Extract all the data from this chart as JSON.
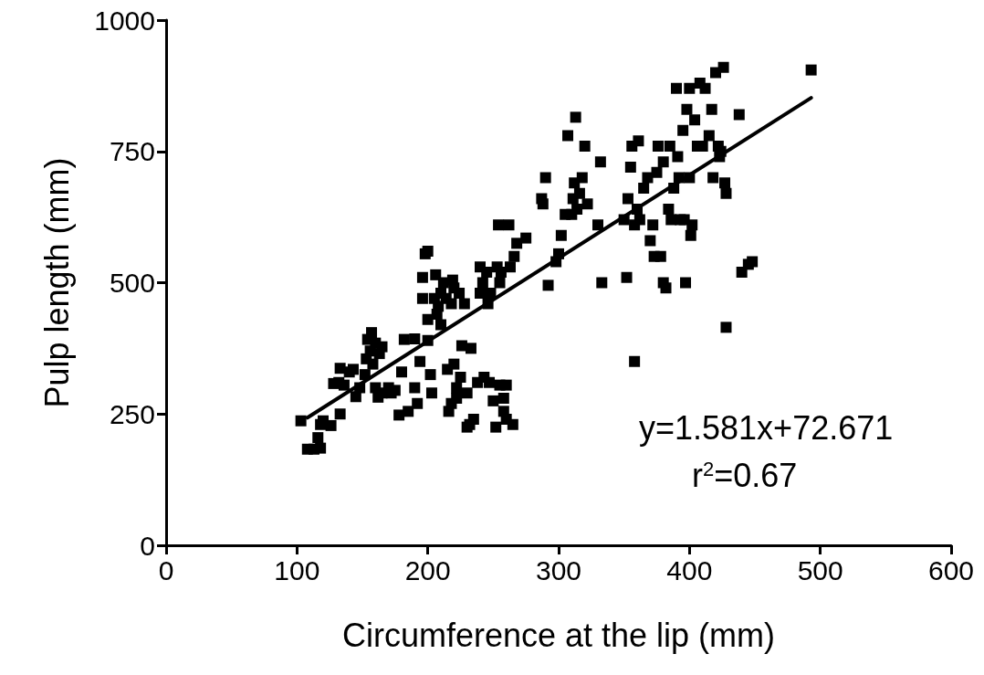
{
  "chart_data": {
    "type": "scatter",
    "xlabel": "Circumference at the lip (mm)",
    "ylabel": "Pulp length (mm)",
    "xlim": [
      0,
      600
    ],
    "xticks": [
      0,
      100,
      200,
      300,
      400,
      500,
      600
    ],
    "ylim": [
      0,
      1000
    ],
    "yticks": [
      0,
      250,
      500,
      750,
      1000
    ],
    "grid": false,
    "marker": "square",
    "annotations": [
      "y=1.581x+72.671",
      "r$^{2}$=0.67"
    ],
    "series": [
      {
        "color": "#000000",
        "x": [
          103,
          108,
          113,
          116,
          118,
          118,
          120,
          126,
          128,
          132,
          133,
          133,
          136,
          140,
          143,
          145,
          148,
          152,
          153,
          154,
          156,
          157,
          158,
          160,
          160,
          162,
          163,
          165,
          165,
          170,
          172,
          175,
          178,
          180,
          182,
          185,
          190,
          190,
          192,
          194,
          196,
          196,
          198,
          200,
          200,
          200,
          202,
          203,
          205,
          206,
          207,
          208,
          210,
          210,
          212,
          214,
          215,
          216,
          218,
          218,
          219,
          220,
          220,
          222,
          222,
          224,
          225,
          226,
          228,
          230,
          230,
          232,
          233,
          235,
          238,
          240,
          240,
          242,
          243,
          245,
          246,
          247,
          248,
          250,
          252,
          253,
          254,
          255,
          255,
          256,
          258,
          258,
          260,
          260,
          262,
          263,
          265,
          266,
          268,
          275,
          287,
          288,
          290,
          292,
          298,
          300,
          302,
          305,
          307,
          310,
          311,
          312,
          313,
          314,
          316,
          318,
          320,
          322,
          330,
          332,
          333,
          350,
          352,
          353,
          355,
          356,
          358,
          358,
          360,
          361,
          362,
          365,
          368,
          370,
          372,
          373,
          375,
          376,
          378,
          380,
          380,
          382,
          384,
          385,
          386,
          388,
          390,
          391,
          392,
          393,
          395,
          396,
          397,
          398,
          400,
          400,
          401,
          402,
          404,
          406,
          408,
          410,
          412,
          415,
          417,
          418,
          420,
          422,
          423,
          424,
          426,
          427,
          428,
          428,
          438,
          440,
          445,
          448,
          493
        ],
        "values": [
          237,
          183,
          183,
          205,
          185,
          230,
          237,
          228,
          308,
          310,
          250,
          337,
          305,
          330,
          335,
          283,
          300,
          325,
          355,
          392,
          370,
          405,
          345,
          385,
          300,
          282,
          365,
          378,
          290,
          300,
          290,
          295,
          248,
          330,
          392,
          255,
          393,
          300,
          270,
          350,
          510,
          470,
          555,
          560,
          430,
          390,
          325,
          290,
          470,
          515,
          440,
          455,
          420,
          480,
          500,
          470,
          335,
          255,
          270,
          460,
          505,
          490,
          345,
          280,
          300,
          480,
          320,
          380,
          460,
          290,
          225,
          230,
          375,
          240,
          310,
          530,
          480,
          500,
          320,
          520,
          460,
          310,
          480,
          275,
          225,
          530,
          610,
          500,
          305,
          520,
          280,
          255,
          305,
          240,
          610,
          530,
          230,
          550,
          575,
          585,
          660,
          650,
          700,
          495,
          540,
          555,
          590,
          630,
          780,
          630,
          660,
          690,
          815,
          640,
          670,
          700,
          760,
          650,
          610,
          730,
          500,
          620,
          510,
          660,
          720,
          760,
          350,
          610,
          640,
          770,
          620,
          680,
          700,
          580,
          610,
          550,
          710,
          760,
          550,
          730,
          500,
          490,
          640,
          760,
          620,
          680,
          870,
          740,
          700,
          620,
          790,
          620,
          500,
          830,
          870,
          700,
          590,
          610,
          810,
          760,
          880,
          760,
          870,
          780,
          830,
          700,
          900,
          760,
          740,
          750,
          910,
          690,
          415,
          670,
          820,
          520,
          535,
          540,
          905
        ]
      },
      {
        "type": "line",
        "color": "#000000",
        "marker": "none",
        "line_style": "solid",
        "x": [
          108,
          493
        ],
        "values": [
          243,
          852
        ]
      }
    ]
  }
}
